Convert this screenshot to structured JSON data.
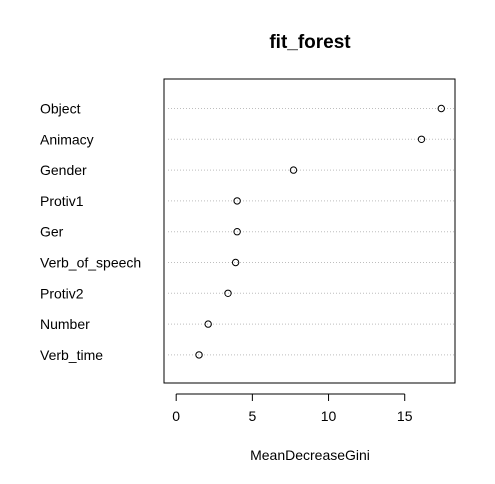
{
  "chart_data": {
    "type": "scatter",
    "title": "fit_forest",
    "xlabel": "MeanDecreaseGini",
    "ylabel": "",
    "categories": [
      "Object",
      "Animacy",
      "Gender",
      "Protiv1",
      "Ger",
      "Verb_of_speech",
      "Protiv2",
      "Number",
      "Verb_time"
    ],
    "values": [
      17.4,
      16.1,
      7.7,
      4.0,
      4.0,
      3.9,
      3.4,
      2.1,
      1.5
    ],
    "xlim": [
      -0.8,
      18.3
    ],
    "xticks": [
      0,
      5,
      10,
      15
    ],
    "xtick_labels": [
      "0",
      "5",
      "10",
      "15"
    ],
    "grid": "dotted horizontal lines per category",
    "legend": "none"
  },
  "colors": {
    "background": "#ffffff",
    "axis": "#000000",
    "grid": "#bebebe",
    "point": "#000000"
  }
}
